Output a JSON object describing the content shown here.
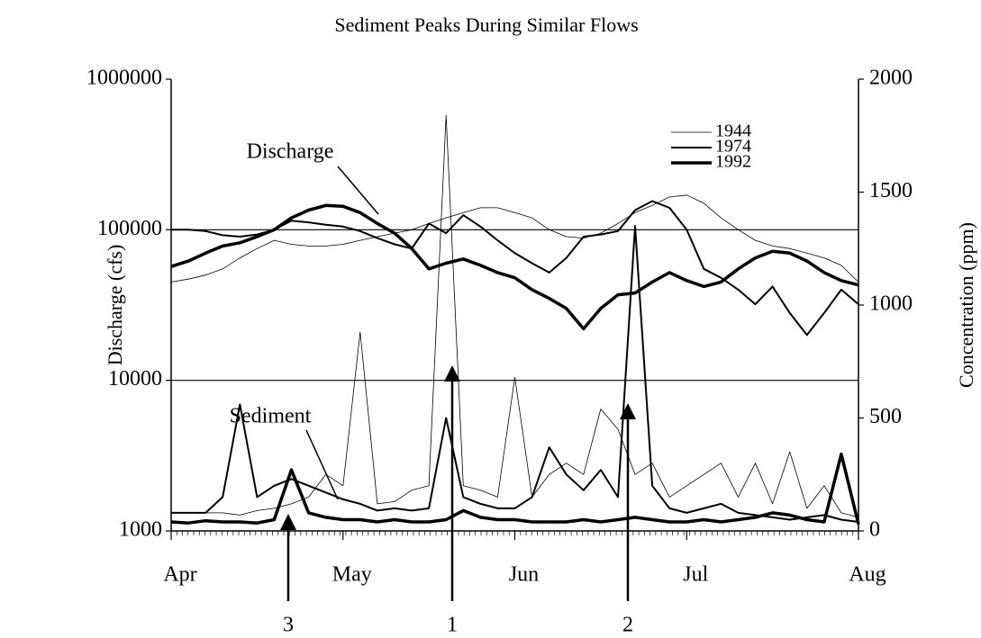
{
  "chart_data": {
    "type": "line",
    "title": "Sediment Peaks During Similar Flows",
    "y_label": "Discharge (cfs)",
    "y2_label": "Concentration (ppm)",
    "categories": [
      "Apr",
      "May",
      "Jun",
      "Jul",
      "Aug"
    ],
    "yscale": "log",
    "ylim": [
      1000,
      1000000
    ],
    "yticks": [
      1000,
      10000,
      100000,
      1000000
    ],
    "y2lim": [
      0,
      2000
    ],
    "y2ticks": [
      0,
      500,
      1000,
      1500,
      2000
    ],
    "grid": true,
    "legend": "top-right",
    "annotations": [
      "Discharge",
      "Sediment"
    ],
    "markers": [
      "3",
      "1",
      "2"
    ],
    "series": [
      {
        "name": "1944",
        "color": "#000000",
        "line_width": 0.8,
        "discharge": [
          45000,
          47000,
          50000,
          55000,
          65000,
          75000,
          85000,
          80000,
          78000,
          78000,
          80000,
          85000,
          90000,
          95000,
          100000,
          110000,
          120000,
          130000,
          140000,
          140000,
          130000,
          120000,
          100000,
          90000,
          88000,
          95000,
          110000,
          130000,
          145000,
          165000,
          170000,
          150000,
          120000,
          100000,
          85000,
          78000,
          75000,
          70000,
          65000,
          58000,
          45000
        ],
        "sediment": [
          80,
          80,
          80,
          80,
          70,
          90,
          100,
          120,
          150,
          250,
          200,
          880,
          120,
          130,
          180,
          200,
          1840,
          200,
          180,
          150,
          680,
          150,
          250,
          300,
          250,
          540,
          450,
          250,
          300,
          150,
          200,
          250,
          300,
          150,
          300,
          120,
          350,
          100,
          200,
          80,
          60
        ]
      },
      {
        "name": "1974",
        "color": "#000000",
        "line_width": 2,
        "discharge": [
          100000,
          100000,
          98000,
          92000,
          90000,
          93000,
          100000,
          115000,
          112000,
          108000,
          105000,
          98000,
          88000,
          80000,
          75000,
          110000,
          95000,
          125000,
          105000,
          85000,
          70000,
          60000,
          52000,
          65000,
          90000,
          93000,
          98000,
          135000,
          155000,
          140000,
          100000,
          55000,
          48000,
          40000,
          32000,
          42000,
          28000,
          20000,
          28000,
          40000,
          32000
        ],
        "sediment": [
          80,
          80,
          80,
          150,
          560,
          150,
          200,
          230,
          200,
          170,
          140,
          120,
          90,
          100,
          90,
          100,
          500,
          150,
          120,
          100,
          100,
          150,
          370,
          250,
          180,
          270,
          150,
          1350,
          200,
          100,
          80,
          100,
          120,
          80,
          70,
          60,
          50,
          60,
          70,
          50,
          40
        ]
      },
      {
        "name": "1992",
        "color": "#000000",
        "line_width": 3.5,
        "discharge": [
          57000,
          62000,
          70000,
          78000,
          82000,
          90000,
          100000,
          120000,
          135000,
          145000,
          143000,
          130000,
          110000,
          95000,
          75000,
          55000,
          60000,
          64000,
          58000,
          52000,
          48000,
          40000,
          35000,
          30000,
          22000,
          30000,
          37000,
          38000,
          45000,
          52000,
          46000,
          42000,
          45000,
          55000,
          65000,
          72000,
          70000,
          62000,
          52000,
          46000,
          43000
        ],
        "sediment": [
          40,
          35,
          45,
          40,
          40,
          35,
          50,
          270,
          80,
          60,
          50,
          50,
          40,
          50,
          40,
          40,
          50,
          90,
          60,
          50,
          50,
          40,
          40,
          40,
          50,
          40,
          50,
          60,
          50,
          40,
          40,
          50,
          40,
          50,
          60,
          80,
          70,
          50,
          40,
          340,
          30
        ]
      }
    ]
  }
}
